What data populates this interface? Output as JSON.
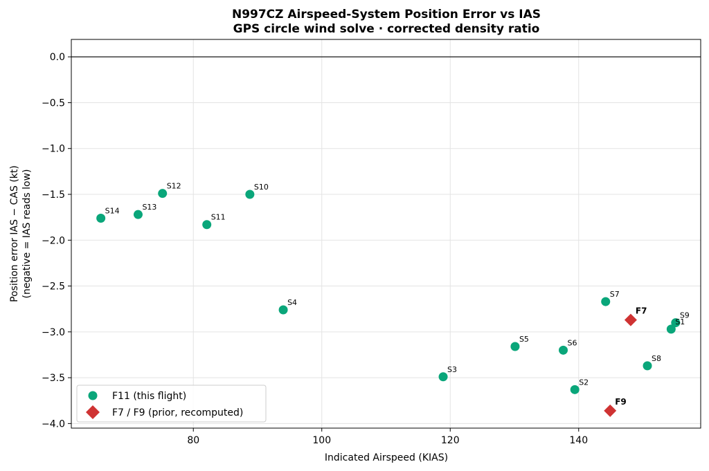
{
  "chart_data": {
    "type": "scatter",
    "title": "N997CZ Airspeed-System Position Error vs IAS",
    "subtitle": "GPS circle wind solve · corrected density ratio",
    "xlabel": "Indicated Airspeed (KIAS)",
    "ylabel_line1": "Position error  IAS − CAS  (kt)",
    "ylabel_line2": "(negative = IAS reads low)",
    "xlim": [
      61,
      159
    ],
    "ylim": [
      -4.05,
      0.19
    ],
    "x_ticks": [
      80,
      100,
      120,
      140
    ],
    "y_ticks": [
      0.0,
      -0.5,
      -1.0,
      -1.5,
      -2.0,
      -2.5,
      -3.0,
      -3.5,
      -4.0
    ],
    "y_tick_labels": [
      "0.0",
      "−0.5",
      "−1.0",
      "−1.5",
      "−2.0",
      "−2.5",
      "−3.0",
      "−3.5",
      "−4.0"
    ],
    "grid": true,
    "reference_line_y": 0.0,
    "legend_position": "lower-left",
    "series": [
      {
        "name": "F11 (this flight)",
        "marker": "circle",
        "color": "#0aa67a",
        "points": [
          {
            "label": "S1",
            "x": 154.4,
            "y": -2.97
          },
          {
            "label": "S2",
            "x": 139.4,
            "y": -3.63
          },
          {
            "label": "S3",
            "x": 118.9,
            "y": -3.49
          },
          {
            "label": "S4",
            "x": 94.0,
            "y": -2.76
          },
          {
            "label": "S5",
            "x": 130.1,
            "y": -3.16
          },
          {
            "label": "S6",
            "x": 137.6,
            "y": -3.2
          },
          {
            "label": "S7",
            "x": 144.2,
            "y": -2.67
          },
          {
            "label": "S8",
            "x": 150.7,
            "y": -3.37
          },
          {
            "label": "S9",
            "x": 155.1,
            "y": -2.9
          },
          {
            "label": "S10",
            "x": 88.8,
            "y": -1.5
          },
          {
            "label": "S11",
            "x": 82.1,
            "y": -1.83
          },
          {
            "label": "S12",
            "x": 75.2,
            "y": -1.49
          },
          {
            "label": "S13",
            "x": 71.4,
            "y": -1.72
          },
          {
            "label": "S14",
            "x": 65.6,
            "y": -1.76
          }
        ]
      },
      {
        "name": "F7 / F9 (prior, recomputed)",
        "marker": "diamond",
        "color": "#cf3333",
        "points": [
          {
            "label": "F7",
            "x": 148.1,
            "y": -2.87
          },
          {
            "label": "F9",
            "x": 144.9,
            "y": -3.86
          }
        ]
      }
    ]
  }
}
